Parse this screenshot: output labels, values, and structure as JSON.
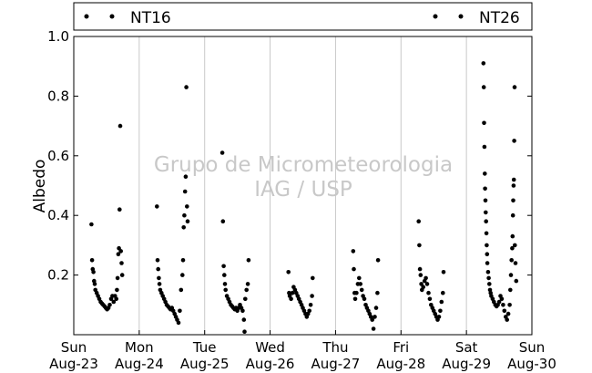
{
  "chart_data": {
    "type": "scatter",
    "ylabel": "Albedo",
    "ylim": [
      0.0,
      1.0
    ],
    "yticks": [
      0.2,
      0.4,
      0.6,
      0.8,
      1.0
    ],
    "xlim": [
      0,
      7
    ],
    "xticks": [
      {
        "day": "Sun",
        "date": "Aug-23"
      },
      {
        "day": "Mon",
        "date": "Aug-24"
      },
      {
        "day": "Tue",
        "date": "Aug-25"
      },
      {
        "day": "Wed",
        "date": "Aug-26"
      },
      {
        "day": "Thu",
        "date": "Aug-27"
      },
      {
        "day": "Fri",
        "date": "Aug-28"
      },
      {
        "day": "Sat",
        "date": "Aug-29"
      },
      {
        "day": "Sun",
        "date": "Aug-30"
      }
    ],
    "grid": "vertical",
    "legend_position": "top",
    "watermark": [
      "Grupo de Micrometeorologia",
      "IAG / USP"
    ],
    "series": [
      {
        "name": "NT16",
        "color": "#000000",
        "points": [
          [
            0.27,
            0.37
          ],
          [
            0.28,
            0.25
          ],
          [
            0.29,
            0.22
          ],
          [
            0.3,
            0.21
          ],
          [
            0.31,
            0.18
          ],
          [
            0.32,
            0.17
          ],
          [
            0.33,
            0.15
          ],
          [
            0.35,
            0.14
          ],
          [
            0.37,
            0.13
          ],
          [
            0.39,
            0.12
          ],
          [
            0.41,
            0.11
          ],
          [
            0.43,
            0.105
          ],
          [
            0.45,
            0.1
          ],
          [
            0.47,
            0.095
          ],
          [
            0.49,
            0.09
          ],
          [
            0.51,
            0.085
          ],
          [
            0.53,
            0.09
          ],
          [
            0.55,
            0.1
          ],
          [
            0.57,
            0.12
          ],
          [
            0.59,
            0.13
          ],
          [
            0.61,
            0.11
          ],
          [
            0.63,
            0.13
          ],
          [
            0.65,
            0.12
          ],
          [
            0.66,
            0.15
          ],
          [
            0.67,
            0.19
          ],
          [
            0.68,
            0.27
          ],
          [
            0.69,
            0.29
          ],
          [
            0.7,
            0.42
          ],
          [
            0.71,
            0.7
          ],
          [
            0.72,
            0.28
          ],
          [
            0.73,
            0.24
          ],
          [
            0.74,
            0.2
          ],
          [
            1.27,
            0.43
          ],
          [
            1.28,
            0.25
          ],
          [
            1.29,
            0.22
          ],
          [
            1.3,
            0.19
          ],
          [
            1.31,
            0.17
          ],
          [
            1.32,
            0.15
          ],
          [
            1.34,
            0.14
          ],
          [
            1.36,
            0.13
          ],
          [
            1.38,
            0.12
          ],
          [
            1.4,
            0.11
          ],
          [
            1.42,
            0.1
          ],
          [
            1.44,
            0.095
          ],
          [
            1.46,
            0.09
          ],
          [
            1.48,
            0.085
          ],
          [
            1.5,
            0.09
          ],
          [
            1.52,
            0.08
          ],
          [
            1.54,
            0.07
          ],
          [
            1.56,
            0.06
          ],
          [
            1.58,
            0.05
          ],
          [
            1.6,
            0.04
          ],
          [
            1.62,
            0.08
          ],
          [
            1.64,
            0.15
          ],
          [
            1.66,
            0.2
          ],
          [
            1.67,
            0.25
          ],
          [
            1.68,
            0.36
          ],
          [
            1.69,
            0.4
          ],
          [
            1.7,
            0.48
          ],
          [
            1.71,
            0.53
          ],
          [
            1.72,
            0.83
          ],
          [
            1.73,
            0.43
          ],
          [
            1.74,
            0.38
          ],
          [
            2.27,
            0.61
          ],
          [
            2.28,
            0.38
          ],
          [
            2.29,
            0.23
          ],
          [
            2.3,
            0.2
          ],
          [
            2.31,
            0.17
          ],
          [
            2.32,
            0.15
          ],
          [
            2.34,
            0.13
          ],
          [
            2.36,
            0.12
          ],
          [
            2.38,
            0.11
          ],
          [
            2.4,
            0.1
          ],
          [
            2.42,
            0.095
          ],
          [
            2.44,
            0.09
          ],
          [
            2.46,
            0.085
          ],
          [
            2.48,
            0.09
          ],
          [
            2.5,
            0.08
          ],
          [
            2.52,
            0.09
          ],
          [
            2.54,
            0.1
          ],
          [
            2.56,
            0.09
          ],
          [
            2.58,
            0.08
          ],
          [
            2.6,
            0.05
          ],
          [
            2.61,
            0.01
          ],
          [
            2.62,
            0.12
          ],
          [
            2.64,
            0.15
          ],
          [
            2.66,
            0.17
          ],
          [
            2.67,
            0.25
          ],
          [
            3.28,
            0.21
          ],
          [
            3.29,
            0.14
          ],
          [
            3.3,
            0.13
          ],
          [
            3.32,
            0.12
          ],
          [
            3.34,
            0.14
          ],
          [
            3.36,
            0.16
          ],
          [
            3.38,
            0.15
          ],
          [
            3.4,
            0.14
          ],
          [
            3.42,
            0.13
          ],
          [
            3.44,
            0.12
          ],
          [
            3.46,
            0.11
          ],
          [
            3.48,
            0.1
          ],
          [
            3.5,
            0.09
          ],
          [
            3.52,
            0.08
          ],
          [
            3.54,
            0.07
          ],
          [
            3.56,
            0.06
          ],
          [
            3.58,
            0.07
          ],
          [
            3.6,
            0.08
          ],
          [
            3.62,
            0.1
          ],
          [
            3.64,
            0.13
          ],
          [
            3.65,
            0.19
          ],
          [
            4.27,
            0.28
          ],
          [
            4.28,
            0.22
          ],
          [
            4.29,
            0.14
          ],
          [
            4.3,
            0.12
          ],
          [
            4.32,
            0.14
          ],
          [
            4.34,
            0.17
          ],
          [
            4.36,
            0.19
          ],
          [
            4.38,
            0.17
          ],
          [
            4.4,
            0.15
          ],
          [
            4.42,
            0.13
          ],
          [
            4.44,
            0.12
          ],
          [
            4.46,
            0.1
          ],
          [
            4.48,
            0.09
          ],
          [
            4.5,
            0.08
          ],
          [
            4.52,
            0.07
          ],
          [
            4.54,
            0.06
          ],
          [
            4.56,
            0.05
          ],
          [
            4.58,
            0.02
          ],
          [
            4.6,
            0.06
          ],
          [
            4.62,
            0.09
          ],
          [
            4.64,
            0.14
          ],
          [
            4.65,
            0.25
          ],
          [
            5.27,
            0.38
          ],
          [
            5.28,
            0.3
          ],
          [
            5.29,
            0.22
          ],
          [
            5.3,
            0.2
          ],
          [
            5.31,
            0.17
          ],
          [
            5.32,
            0.15
          ],
          [
            5.34,
            0.16
          ],
          [
            5.36,
            0.18
          ],
          [
            5.38,
            0.19
          ],
          [
            5.4,
            0.17
          ],
          [
            5.42,
            0.14
          ],
          [
            5.44,
            0.12
          ],
          [
            5.46,
            0.1
          ],
          [
            5.48,
            0.09
          ],
          [
            5.5,
            0.08
          ],
          [
            5.52,
            0.07
          ],
          [
            5.54,
            0.06
          ],
          [
            5.56,
            0.05
          ],
          [
            5.58,
            0.06
          ],
          [
            5.6,
            0.08
          ],
          [
            5.62,
            0.11
          ],
          [
            5.64,
            0.14
          ],
          [
            5.65,
            0.21
          ]
        ]
      },
      {
        "name": "NT26",
        "color": "#000000",
        "points": [
          [
            6.26,
            0.91
          ],
          [
            6.265,
            0.83
          ],
          [
            6.27,
            0.71
          ],
          [
            6.275,
            0.63
          ],
          [
            6.28,
            0.54
          ],
          [
            6.285,
            0.49
          ],
          [
            6.29,
            0.45
          ],
          [
            6.295,
            0.41
          ],
          [
            6.3,
            0.38
          ],
          [
            6.305,
            0.34
          ],
          [
            6.31,
            0.3
          ],
          [
            6.315,
            0.27
          ],
          [
            6.32,
            0.24
          ],
          [
            6.33,
            0.21
          ],
          [
            6.34,
            0.19
          ],
          [
            6.35,
            0.17
          ],
          [
            6.36,
            0.15
          ],
          [
            6.37,
            0.14
          ],
          [
            6.38,
            0.13
          ],
          [
            6.4,
            0.12
          ],
          [
            6.42,
            0.11
          ],
          [
            6.44,
            0.1
          ],
          [
            6.46,
            0.095
          ],
          [
            6.48,
            0.1
          ],
          [
            6.5,
            0.11
          ],
          [
            6.52,
            0.13
          ],
          [
            6.54,
            0.12
          ],
          [
            6.56,
            0.1
          ],
          [
            6.58,
            0.08
          ],
          [
            6.6,
            0.06
          ],
          [
            6.62,
            0.05
          ],
          [
            6.64,
            0.07
          ],
          [
            6.66,
            0.1
          ],
          [
            6.67,
            0.15
          ],
          [
            6.68,
            0.2
          ],
          [
            6.69,
            0.25
          ],
          [
            6.7,
            0.29
          ],
          [
            6.705,
            0.33
          ],
          [
            6.71,
            0.4
          ],
          [
            6.715,
            0.45
          ],
          [
            6.72,
            0.5
          ],
          [
            6.725,
            0.52
          ],
          [
            6.73,
            0.65
          ],
          [
            6.735,
            0.83
          ],
          [
            6.74,
            0.3
          ],
          [
            6.75,
            0.24
          ],
          [
            6.76,
            0.18
          ]
        ]
      }
    ]
  }
}
